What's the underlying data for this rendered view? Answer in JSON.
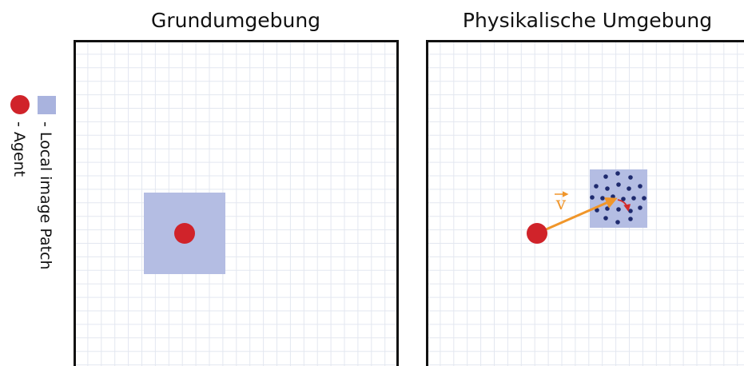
{
  "panels": [
    {
      "title": "Grundumgebung"
    },
    {
      "title": "Physikalische Umgebung",
      "vector_label": "v"
    }
  ],
  "legend": {
    "patch": "- Local image Patch",
    "agent": "- Agent"
  }
}
